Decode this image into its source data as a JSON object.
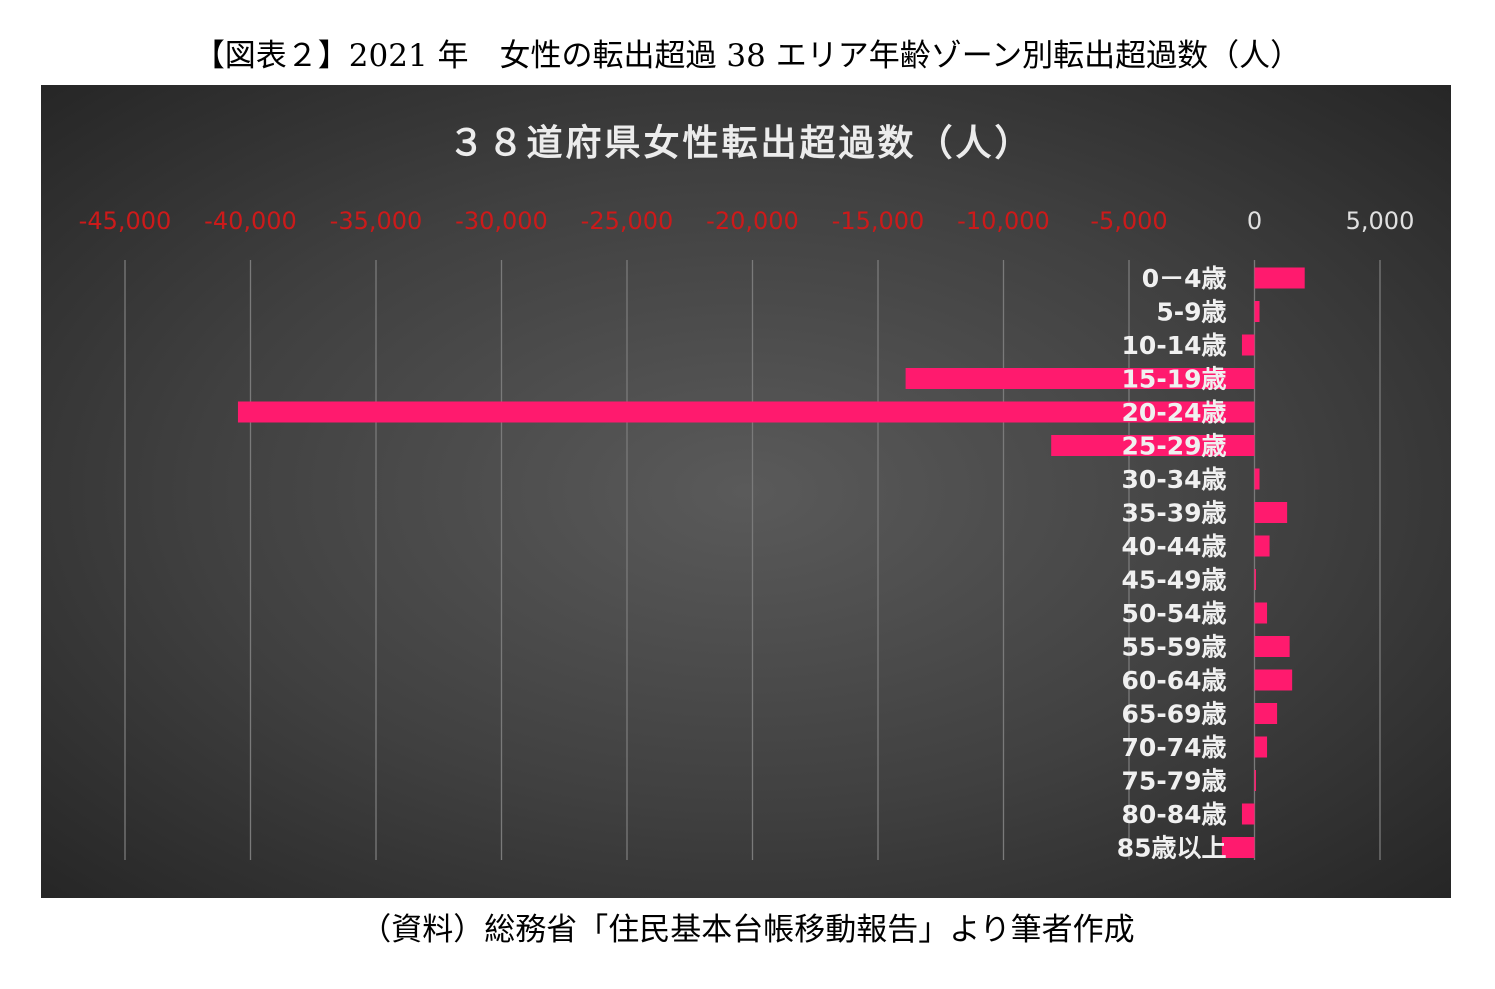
{
  "page": {
    "title": "【図表２】2021 年　女性の転出超過 38 エリア年齢ゾーン別転出超過数（人）",
    "source": "（資料）総務省「住民基本台帳移動報告」より筆者作成"
  },
  "colors": {
    "bar": "#ff1a6e",
    "negative_tick": "#cc1a1a",
    "positive_tick": "#e0e0e0",
    "category_label": "#f0f0f0",
    "gridline": "#7a7a7a",
    "title": "#ececec"
  },
  "chart_data": {
    "type": "bar",
    "orientation": "horizontal",
    "title": "３８道府県女性転出超過数（人）",
    "xlabel": "",
    "ylabel": "",
    "xlim": [
      -45000,
      5000
    ],
    "x_axis_position": "top",
    "grid": true,
    "legend": "none",
    "tick_values": [
      -45000,
      -40000,
      -35000,
      -30000,
      -25000,
      -20000,
      -15000,
      -10000,
      -5000,
      0,
      5000
    ],
    "tick_labels": [
      "-45,000",
      "-40,000",
      "-35,000",
      "-30,000",
      "-25,000",
      "-20,000",
      "-15,000",
      "-10,000",
      "-5,000",
      "0",
      "5,000"
    ],
    "categories": [
      "0－4歳",
      "5-9歳",
      "10-14歳",
      "15-19歳",
      "20‐24歳",
      "25-29歳",
      "30‐34歳",
      "35-39歳",
      "40‐44歳",
      "45-49歳",
      "50-54歳",
      "55-59歳",
      "60-64歳",
      "65-69歳",
      "70-74歳",
      "75-79歳",
      "80‐84歳",
      "85歳以上"
    ],
    "values": [
      2000,
      200,
      -500,
      -13900,
      -40500,
      -8100,
      200,
      1300,
      600,
      50,
      500,
      1400,
      1500,
      900,
      500,
      50,
      -500,
      -1300
    ]
  }
}
